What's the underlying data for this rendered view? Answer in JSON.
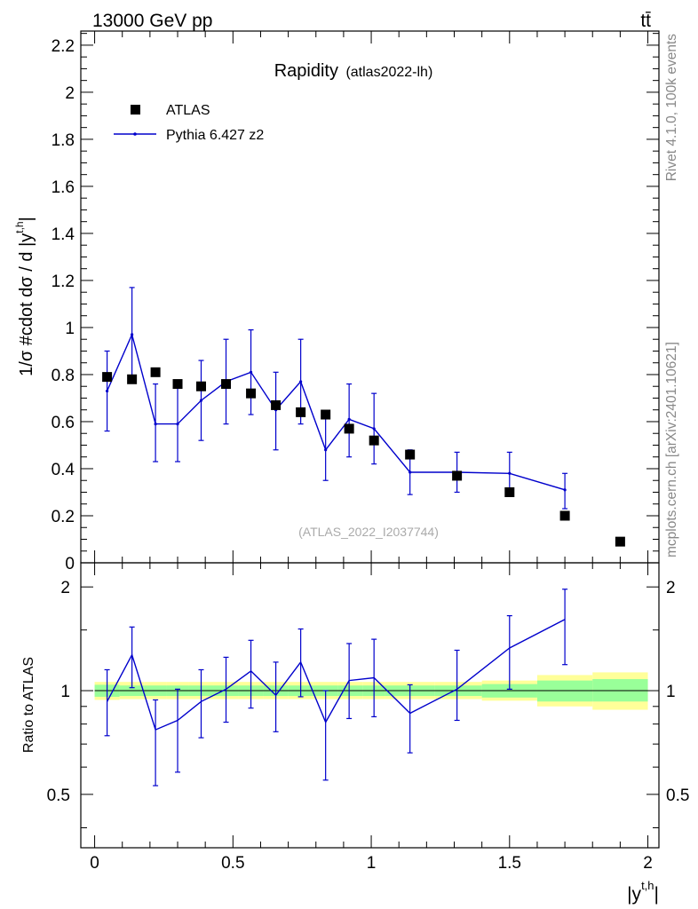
{
  "header": {
    "left": "13000 GeV pp",
    "right": "tt̄"
  },
  "side_text": {
    "top": "Rivet 4.1.0,  100k events",
    "bottom": "mcplots.cern.ch [arXiv:2401.10621]"
  },
  "chart_data": [
    {
      "type": "scatter",
      "panel": "main",
      "title": "Rapidity",
      "title_tag": "(atlas2022-lh)",
      "watermark": "(ATLAS_2022_I2037744)",
      "ylabel": "1/σ #cdot dσ / d |y^{t,h}|",
      "ylabel_main": "1/σ #cdot dσ / d |y",
      "ylabel_sup": "t,h",
      "ylabel_end": "|",
      "xlim": [
        -0.05,
        2.04
      ],
      "ylim": [
        0,
        2.26
      ],
      "yticks": [
        0,
        0.2,
        0.4,
        0.6,
        0.8,
        1,
        1.2,
        1.4,
        1.6,
        1.8,
        2,
        2.2
      ],
      "ytick_labels": [
        "0",
        "0.2",
        "0.4",
        "0.6",
        "0.8",
        "1",
        "1.2",
        "1.4",
        "1.6",
        "1.8",
        "2",
        "2.2"
      ],
      "legend": {
        "placement": "top-left",
        "entries": [
          "ATLAS",
          "Pythia 6.427 z2"
        ]
      },
      "series": [
        {
          "name": "ATLAS",
          "style": "markers",
          "color": "#000000",
          "x": [
            0.045,
            0.135,
            0.22,
            0.3,
            0.385,
            0.475,
            0.565,
            0.655,
            0.745,
            0.835,
            0.92,
            1.01,
            1.14,
            1.31,
            1.5,
            1.7,
            1.9
          ],
          "y": [
            0.79,
            0.78,
            0.81,
            0.76,
            0.75,
            0.76,
            0.72,
            0.67,
            0.64,
            0.63,
            0.57,
            0.52,
            0.46,
            0.37,
            0.3,
            0.2,
            0.09
          ]
        },
        {
          "name": "Pythia 6.427 z2",
          "style": "line",
          "color": "#0000cc",
          "x": [
            0.045,
            0.135,
            0.22,
            0.3,
            0.385,
            0.475,
            0.565,
            0.655,
            0.745,
            0.835,
            0.92,
            1.01,
            1.14,
            1.31,
            1.5,
            1.7
          ],
          "y": [
            0.73,
            0.97,
            0.59,
            0.59,
            0.69,
            0.77,
            0.81,
            0.65,
            0.77,
            0.48,
            0.61,
            0.57,
            0.385,
            0.385,
            0.38,
            0.31
          ],
          "err_low": [
            0.56,
            0.79,
            0.43,
            0.43,
            0.52,
            0.59,
            0.63,
            0.48,
            0.59,
            0.35,
            0.45,
            0.42,
            0.29,
            0.3,
            0.29,
            0.23
          ],
          "err_high": [
            0.9,
            1.17,
            0.76,
            0.76,
            0.86,
            0.95,
            0.99,
            0.81,
            0.95,
            0.63,
            0.76,
            0.72,
            0.48,
            0.47,
            0.47,
            0.38
          ]
        }
      ]
    },
    {
      "type": "line",
      "panel": "ratio",
      "ylabel": "Ratio to ATLAS",
      "xlabel": "|y^{t,h}|",
      "xlabel_main": "|y",
      "xlabel_sup": "t,h",
      "xlabel_end": "|",
      "xlim": [
        -0.05,
        2.04
      ],
      "ylim": [
        0.35,
        2.35
      ],
      "ylog": true,
      "yticks": [
        0.5,
        1,
        2
      ],
      "ytick_labels": [
        "0.5",
        "1",
        "2"
      ],
      "xticks": [
        0,
        0.5,
        1,
        1.5,
        2
      ],
      "xtick_labels": [
        "0",
        "0.5",
        "1",
        "1.5",
        "2"
      ],
      "band_bins": [
        {
          "x0": 0.0,
          "x1": 0.09,
          "inner": [
            0.96,
            1.04
          ],
          "outer": [
            0.94,
            1.06
          ]
        },
        {
          "x0": 0.09,
          "x1": 0.18,
          "inner": [
            0.965,
            1.035
          ],
          "outer": [
            0.945,
            1.06
          ]
        },
        {
          "x0": 0.18,
          "x1": 0.26,
          "inner": [
            0.965,
            1.035
          ],
          "outer": [
            0.945,
            1.06
          ]
        },
        {
          "x0": 0.26,
          "x1": 0.34,
          "inner": [
            0.965,
            1.035
          ],
          "outer": [
            0.945,
            1.06
          ]
        },
        {
          "x0": 0.34,
          "x1": 0.43,
          "inner": [
            0.965,
            1.035
          ],
          "outer": [
            0.945,
            1.06
          ]
        },
        {
          "x0": 0.43,
          "x1": 0.52,
          "inner": [
            0.965,
            1.035
          ],
          "outer": [
            0.945,
            1.06
          ]
        },
        {
          "x0": 0.52,
          "x1": 0.61,
          "inner": [
            0.965,
            1.035
          ],
          "outer": [
            0.945,
            1.06
          ]
        },
        {
          "x0": 0.61,
          "x1": 0.7,
          "inner": [
            0.965,
            1.035
          ],
          "outer": [
            0.945,
            1.06
          ]
        },
        {
          "x0": 0.7,
          "x1": 0.79,
          "inner": [
            0.965,
            1.035
          ],
          "outer": [
            0.945,
            1.06
          ]
        },
        {
          "x0": 0.79,
          "x1": 0.88,
          "inner": [
            0.965,
            1.035
          ],
          "outer": [
            0.945,
            1.06
          ]
        },
        {
          "x0": 0.88,
          "x1": 0.97,
          "inner": [
            0.965,
            1.035
          ],
          "outer": [
            0.945,
            1.06
          ]
        },
        {
          "x0": 0.97,
          "x1": 1.05,
          "inner": [
            0.965,
            1.035
          ],
          "outer": [
            0.945,
            1.06
          ]
        },
        {
          "x0": 1.05,
          "x1": 1.23,
          "inner": [
            0.965,
            1.035
          ],
          "outer": [
            0.945,
            1.06
          ]
        },
        {
          "x0": 1.23,
          "x1": 1.4,
          "inner": [
            0.965,
            1.035
          ],
          "outer": [
            0.945,
            1.06
          ]
        },
        {
          "x0": 1.4,
          "x1": 1.6,
          "inner": [
            0.955,
            1.045
          ],
          "outer": [
            0.935,
            1.07
          ]
        },
        {
          "x0": 1.6,
          "x1": 1.8,
          "inner": [
            0.93,
            1.07
          ],
          "outer": [
            0.9,
            1.11
          ]
        },
        {
          "x0": 1.8,
          "x1": 2.0,
          "inner": [
            0.93,
            1.08
          ],
          "outer": [
            0.88,
            1.13
          ]
        }
      ],
      "series": [
        {
          "name": "Pythia 6.427 z2 / ATLAS",
          "color": "#0000cc",
          "x": [
            0.045,
            0.135,
            0.22,
            0.3,
            0.385,
            0.475,
            0.565,
            0.655,
            0.745,
            0.835,
            0.92,
            1.01,
            1.14,
            1.31,
            1.5,
            1.7
          ],
          "y": [
            0.93,
            1.27,
            0.77,
            0.82,
            0.93,
            1.01,
            1.14,
            0.97,
            1.21,
            0.81,
            1.07,
            1.09,
            0.86,
            1.01,
            1.33,
            1.61
          ],
          "err_low": [
            0.74,
            1.02,
            0.53,
            0.58,
            0.73,
            0.81,
            0.89,
            0.76,
            0.96,
            0.55,
            0.83,
            0.84,
            0.66,
            0.82,
            1.01,
            1.19
          ],
          "err_high": [
            1.15,
            1.53,
            0.94,
            1.01,
            1.15,
            1.25,
            1.4,
            1.21,
            1.51,
            1.0,
            1.37,
            1.41,
            1.04,
            1.31,
            1.65,
            1.97
          ]
        }
      ]
    }
  ]
}
